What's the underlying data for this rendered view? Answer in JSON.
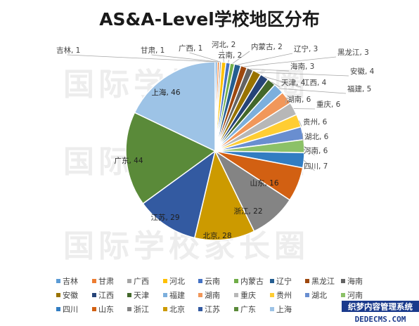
{
  "watermarks": [
    "国际学校家长圈",
    "国际学校家长圈",
    "国际学校家长圈"
  ],
  "brand": {
    "line1": "织梦内容管理系统",
    "line2": "DEDECMS.COM"
  },
  "chart_data": {
    "type": "pie",
    "title": "AS&A-Level学校地区分布",
    "legend_position": "bottom",
    "slices": [
      {
        "name": "吉林",
        "value": 1,
        "color": "#5b9bd5"
      },
      {
        "name": "甘肃",
        "value": 1,
        "color": "#ed7d31"
      },
      {
        "name": "广西",
        "value": 1,
        "color": "#a5a5a5"
      },
      {
        "name": "河北",
        "value": 2,
        "color": "#ffc000"
      },
      {
        "name": "云南",
        "value": 2,
        "color": "#4472c4"
      },
      {
        "name": "内蒙古",
        "value": 2,
        "color": "#70ad47"
      },
      {
        "name": "辽宁",
        "value": 3,
        "color": "#255e91"
      },
      {
        "name": "黑龙江",
        "value": 3,
        "color": "#9e480e"
      },
      {
        "name": "海南",
        "value": 3,
        "color": "#636363"
      },
      {
        "name": "安徽",
        "value": 4,
        "color": "#997300"
      },
      {
        "name": "江西",
        "value": 4,
        "color": "#264478"
      },
      {
        "name": "天津",
        "value": 4,
        "color": "#43682b"
      },
      {
        "name": "福建",
        "value": 5,
        "color": "#7cafdd"
      },
      {
        "name": "湖南",
        "value": 6,
        "color": "#f1975a"
      },
      {
        "name": "重庆",
        "value": 6,
        "color": "#b7b7b7"
      },
      {
        "name": "贵州",
        "value": 6,
        "color": "#ffcd33"
      },
      {
        "name": "湖北",
        "value": 6,
        "color": "#698ed0"
      },
      {
        "name": "河南",
        "value": 6,
        "color": "#8cc168"
      },
      {
        "name": "四川",
        "value": 7,
        "color": "#327dc2"
      },
      {
        "name": "山东",
        "value": 16,
        "color": "#d26012"
      },
      {
        "name": "浙江",
        "value": 22,
        "color": "#848484"
      },
      {
        "name": "北京",
        "value": 28,
        "color": "#cc9a00"
      },
      {
        "name": "江苏",
        "value": 29,
        "color": "#335aa1"
      },
      {
        "name": "广东",
        "value": 44,
        "color": "#5a8a39"
      },
      {
        "name": "上海",
        "value": 46,
        "color": "#9dc3e6"
      }
    ]
  }
}
